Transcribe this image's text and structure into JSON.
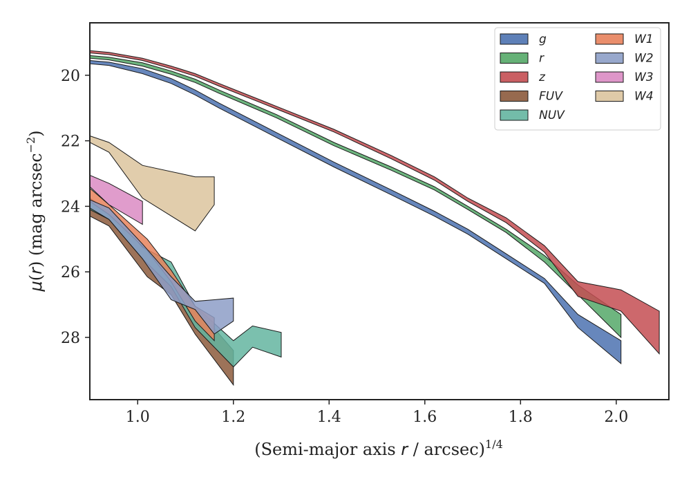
{
  "chart_data": {
    "type": "area",
    "xlabel": "(Semi-major axis r / arcsec)^1/4",
    "ylabel": "μ(r) (mag arcsec^−2)",
    "xlim": [
      0.9,
      2.11
    ],
    "ylim": [
      29.9,
      18.4
    ],
    "y_inverted": true,
    "x_ticks": [
      1.0,
      1.2,
      1.4,
      1.6,
      1.8,
      2.0
    ],
    "x_tick_labels": [
      "1.0",
      "1.2",
      "1.4",
      "1.6",
      "1.8",
      "2.0"
    ],
    "y_ticks": [
      20,
      22,
      24,
      26,
      28
    ],
    "y_tick_labels": [
      "20",
      "22",
      "24",
      "26",
      "28"
    ],
    "grid": false,
    "legend_position": "top-right",
    "series": [
      {
        "name": "g",
        "color": "#4c72b0",
        "x": [
          0.9,
          0.94,
          1.01,
          1.07,
          1.12,
          1.17,
          1.29,
          1.41,
          1.53,
          1.62,
          1.69,
          1.77,
          1.85,
          1.92,
          2.01
        ],
        "y_upper": [
          19.55,
          19.6,
          19.8,
          20.1,
          20.45,
          20.85,
          21.75,
          22.65,
          23.5,
          24.15,
          24.7,
          25.45,
          26.2,
          27.3,
          28.1
        ],
        "y_lower": [
          19.65,
          19.7,
          19.95,
          20.25,
          20.6,
          21.0,
          21.9,
          22.8,
          23.65,
          24.3,
          24.85,
          25.6,
          26.35,
          27.7,
          28.8
        ]
      },
      {
        "name": "r",
        "color": "#55a868",
        "x": [
          0.9,
          0.94,
          1.01,
          1.07,
          1.12,
          1.17,
          1.29,
          1.41,
          1.53,
          1.62,
          1.69,
          1.77,
          1.85,
          1.92,
          2.01
        ],
        "y_upper": [
          19.4,
          19.45,
          19.62,
          19.87,
          20.12,
          20.45,
          21.2,
          22.05,
          22.8,
          23.4,
          24.0,
          24.7,
          25.5,
          26.4,
          27.3
        ],
        "y_lower": [
          19.48,
          19.53,
          19.72,
          19.97,
          20.22,
          20.55,
          21.3,
          22.15,
          22.9,
          23.5,
          24.1,
          24.8,
          25.7,
          26.7,
          28.0
        ]
      },
      {
        "name": "z",
        "color": "#c44e52",
        "x": [
          0.9,
          0.94,
          1.01,
          1.07,
          1.12,
          1.17,
          1.29,
          1.41,
          1.53,
          1.62,
          1.69,
          1.77,
          1.85,
          1.92,
          2.01,
          2.09
        ],
        "y_upper": [
          19.25,
          19.3,
          19.48,
          19.72,
          19.95,
          20.25,
          20.95,
          21.65,
          22.45,
          23.1,
          23.75,
          24.35,
          25.2,
          26.3,
          26.55,
          27.2
        ],
        "y_lower": [
          19.32,
          19.37,
          19.55,
          19.8,
          20.03,
          20.33,
          21.03,
          21.73,
          22.55,
          23.2,
          23.85,
          24.5,
          25.4,
          26.75,
          27.2,
          28.5
        ]
      },
      {
        "name": "FUV",
        "color": "#8c5a3c",
        "x": [
          0.9,
          0.94,
          1.02,
          1.07,
          1.12,
          1.2
        ],
        "y_upper": [
          23.75,
          24.15,
          25.4,
          26.1,
          27.05,
          28.4
        ],
        "y_lower": [
          24.3,
          24.6,
          26.15,
          26.7,
          27.9,
          29.45
        ]
      },
      {
        "name": "NUV",
        "color": "#64b5a0",
        "x": [
          0.9,
          0.94,
          1.01,
          1.07,
          1.12,
          1.2,
          1.24,
          1.3
        ],
        "y_upper": [
          23.85,
          24.05,
          25.25,
          25.7,
          27.05,
          28.1,
          27.65,
          27.85
        ],
        "y_lower": [
          24.1,
          24.4,
          25.6,
          26.45,
          27.7,
          28.9,
          28.3,
          28.6
        ]
      },
      {
        "name": "W1",
        "color": "#e8825c",
        "x": [
          0.9,
          0.94,
          1.02,
          1.07,
          1.12,
          1.16
        ],
        "y_upper": [
          23.45,
          23.95,
          25.0,
          25.95,
          27.05,
          27.4
        ],
        "y_lower": [
          23.85,
          24.25,
          25.35,
          26.3,
          27.5,
          28.1
        ]
      },
      {
        "name": "W2",
        "color": "#8d9ec7",
        "x": [
          0.9,
          0.94,
          1.01,
          1.07,
          1.12,
          1.16,
          1.2
        ],
        "y_upper": [
          23.8,
          24.05,
          25.15,
          26.15,
          26.9,
          26.85,
          26.8
        ],
        "y_lower": [
          24.05,
          24.4,
          25.6,
          26.85,
          27.15,
          27.9,
          27.5
        ]
      },
      {
        "name": "W3",
        "color": "#da8bc3",
        "x": [
          0.9,
          0.94,
          1.01
        ],
        "y_upper": [
          23.05,
          23.3,
          23.85
        ],
        "y_lower": [
          23.4,
          23.95,
          24.55
        ]
      },
      {
        "name": "W4",
        "color": "#dcc49e",
        "x": [
          0.9,
          0.94,
          1.01,
          1.12,
          1.16
        ],
        "y_upper": [
          21.85,
          22.05,
          22.75,
          23.1,
          23.1
        ],
        "y_lower": [
          22.05,
          22.35,
          23.75,
          24.75,
          23.95
        ]
      }
    ],
    "legend": {
      "columns": [
        [
          "g",
          "r",
          "z",
          "FUV",
          "NUV"
        ],
        [
          "W1",
          "W2",
          "W3",
          "W4"
        ]
      ]
    }
  }
}
